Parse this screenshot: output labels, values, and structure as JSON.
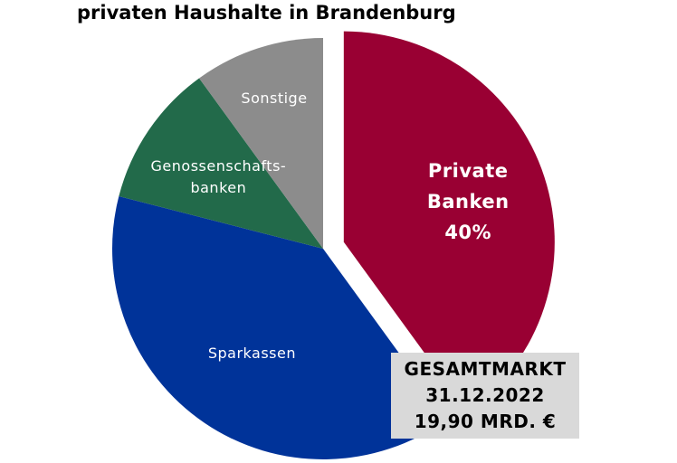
{
  "chart_data": {
    "type": "pie",
    "title": "privaten Haushalte in Brandenburg",
    "categories": [
      "Private Banken",
      "Sparkassen",
      "Genossenschafts-banken",
      "Sonstige"
    ],
    "values": [
      40,
      39,
      11,
      10
    ],
    "value_labels": [
      "40%",
      null,
      null,
      null
    ],
    "colors": [
      "#990033",
      "#003399",
      "#226a4a",
      "#8c8c8c"
    ],
    "annotation": [
      "GESAMTMARKT",
      "31.12.2022",
      "19,90 MRD. €"
    ]
  }
}
